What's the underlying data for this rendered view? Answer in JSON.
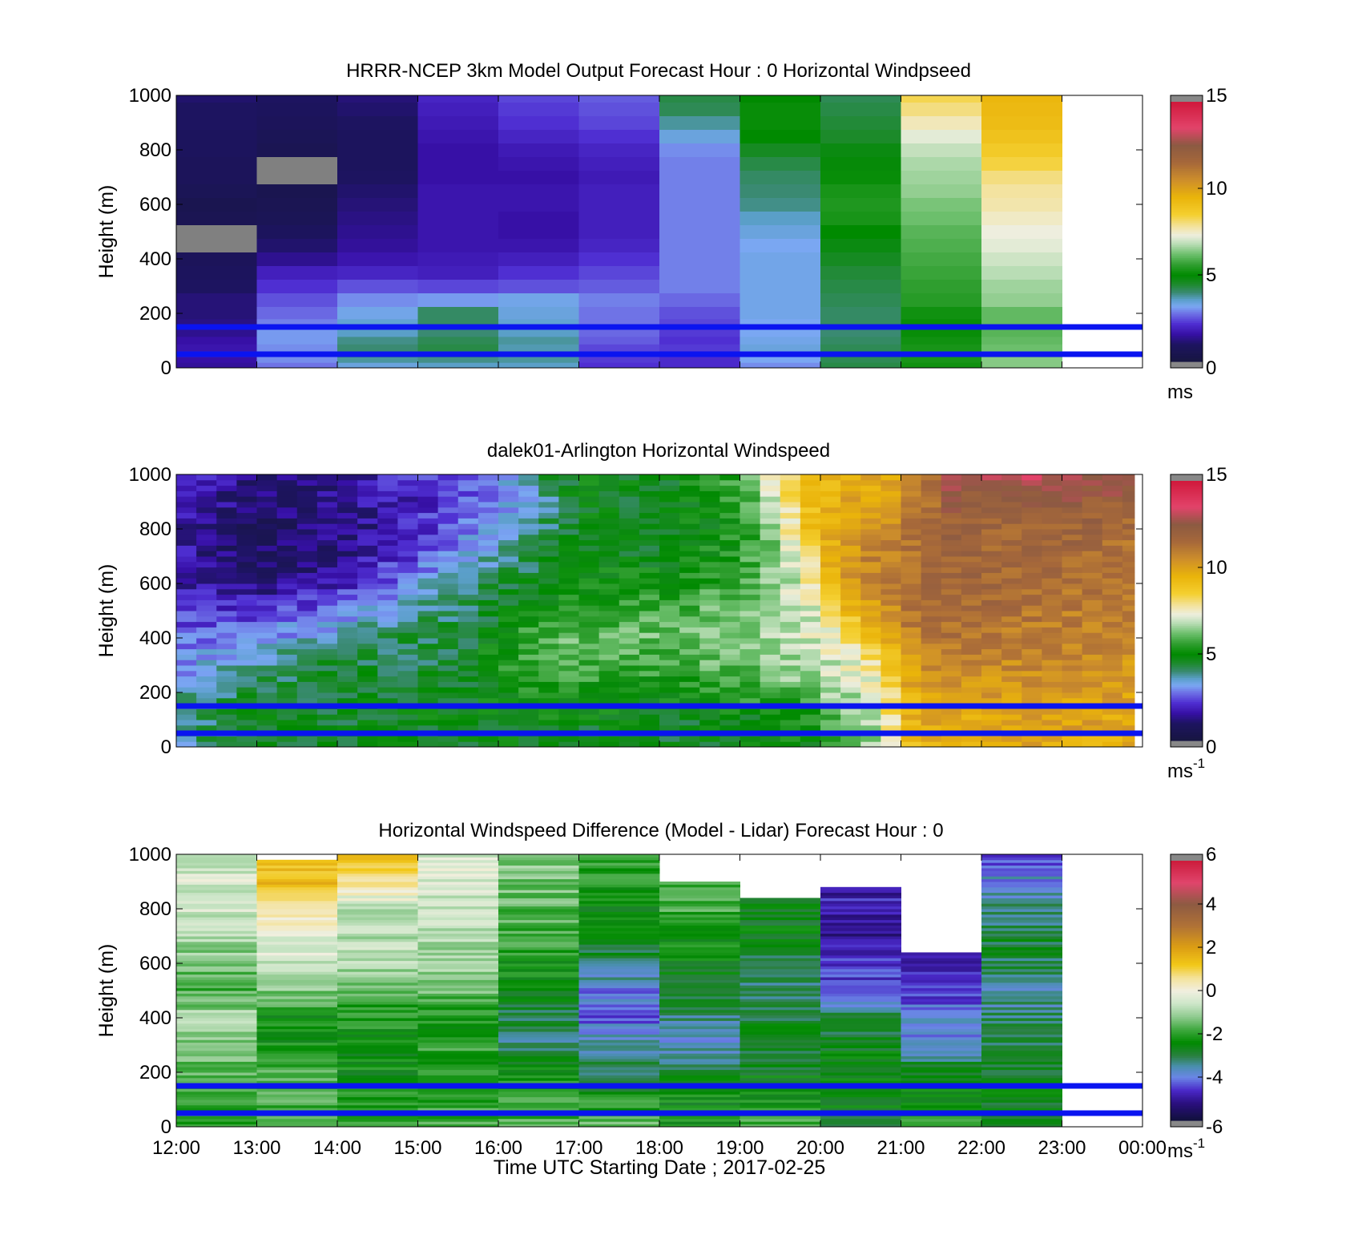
{
  "chart_data": [
    {
      "type": "heatmap",
      "title": "HRRR-NCEP 3km Model Output   Forecast Hour : 0 Horizontal Windpseed",
      "xlabel": "",
      "ylabel": "Height (m)",
      "yticks": [
        "0",
        "200",
        "400",
        "600",
        "800",
        "1000"
      ],
      "ylim": [
        0,
        1000
      ],
      "x": [
        "12:00",
        "13:00",
        "14:00",
        "15:00",
        "16:00",
        "17:00",
        "18:00",
        "19:00",
        "20:00",
        "21:00",
        "22:00",
        "23:00"
      ],
      "heights": [
        10,
        30,
        50,
        75,
        100,
        130,
        160,
        200,
        250,
        300,
        350,
        400,
        450,
        500,
        550,
        600,
        650,
        700,
        750,
        800,
        850,
        900,
        950,
        1000
      ],
      "z": [
        [
          1.5,
          2.8,
          3.4,
          3.6,
          3.6,
          2.2,
          2.1,
          3.0,
          4.3,
          5.2,
          6.4
        ],
        [
          1.6,
          3.0,
          3.8,
          3.9,
          3.8,
          2.3,
          2.1,
          3.2,
          4.2,
          5.3,
          6.4
        ],
        [
          1.8,
          3.0,
          4.0,
          4.1,
          3.8,
          2.4,
          2.2,
          3.3,
          4.3,
          5.3,
          6.3
        ],
        [
          1.7,
          3.0,
          4.0,
          4.3,
          3.7,
          2.4,
          2.3,
          3.4,
          4.2,
          5.3,
          6.2
        ],
        [
          1.6,
          3.1,
          3.9,
          4.2,
          3.8,
          2.6,
          2.2,
          3.3,
          4.1,
          5.2,
          6.1
        ],
        [
          1.4,
          3.1,
          3.6,
          4.0,
          3.6,
          2.7,
          2.3,
          3.2,
          4.0,
          5.1,
          6.0
        ],
        [
          1.3,
          2.9,
          3.5,
          4.1,
          3.5,
          2.8,
          2.4,
          3.2,
          4.1,
          5.1,
          6.1
        ],
        [
          1.2,
          2.7,
          3.3,
          4.1,
          3.4,
          2.8,
          2.5,
          3.3,
          4.1,
          5.2,
          6.1
        ],
        [
          1.2,
          2.5,
          3.0,
          3.1,
          3.3,
          2.9,
          2.7,
          3.3,
          4.2,
          5.5,
          6.5
        ],
        [
          1.0,
          2.2,
          2.5,
          2.4,
          2.5,
          2.6,
          2.9,
          3.3,
          4.3,
          5.6,
          6.6
        ],
        [
          0.9,
          1.9,
          2.0,
          1.9,
          2.2,
          2.4,
          2.9,
          3.3,
          4.4,
          5.7,
          6.8
        ],
        [
          0.8,
          1.4,
          1.7,
          1.8,
          1.9,
          2.2,
          2.9,
          3.3,
          4.6,
          5.8,
          7.0
        ],
        [
          -1,
          1.1,
          1.5,
          1.7,
          1.7,
          2.0,
          2.9,
          3.2,
          4.8,
          5.9,
          7.2
        ],
        [
          -1,
          0.9,
          1.4,
          1.7,
          1.6,
          1.9,
          2.9,
          3.4,
          5.0,
          6.0,
          7.3
        ],
        [
          0.6,
          0.7,
          1.3,
          1.7,
          1.6,
          1.9,
          2.9,
          3.6,
          5.3,
          6.2,
          7.5
        ],
        [
          0.5,
          0.6,
          1.2,
          1.7,
          1.7,
          1.9,
          2.9,
          3.9,
          5.4,
          6.3,
          7.7
        ],
        [
          0.7,
          0.5,
          1.1,
          1.7,
          1.7,
          1.9,
          2.9,
          4.0,
          5.3,
          6.5,
          7.8
        ],
        [
          0.8,
          -1,
          1.0,
          1.6,
          1.6,
          1.8,
          2.9,
          4.1,
          5.1,
          6.6,
          8.0
        ],
        [
          0.8,
          -1,
          0.9,
          1.6,
          1.7,
          1.9,
          2.9,
          4.3,
          4.9,
          6.7,
          8.4
        ],
        [
          0.9,
          0.6,
          0.9,
          1.6,
          1.8,
          2.0,
          3.0,
          4.6,
          4.8,
          6.9,
          8.7
        ],
        [
          0.9,
          0.7,
          0.9,
          1.7,
          2.0,
          2.2,
          3.4,
          5.0,
          4.5,
          7.2,
          9.0
        ],
        [
          1.0,
          0.8,
          1.0,
          1.8,
          2.2,
          2.4,
          3.8,
          5.1,
          4.4,
          7.6,
          9.2
        ],
        [
          1.0,
          0.9,
          1.1,
          1.9,
          2.3,
          2.5,
          4.2,
          5.1,
          4.3,
          8.0,
          9.3
        ],
        [
          1.1,
          1.0,
          1.2,
          2.0,
          2.4,
          2.6,
          4.3,
          5.0,
          4.2,
          8.3,
          9.4
        ]
      ],
      "lines_m": [
        150,
        50
      ],
      "clim": [
        0,
        15
      ],
      "colorbar_ticks": [
        "0",
        "5",
        "10",
        "15"
      ],
      "colorbar_unit": "ms"
    },
    {
      "type": "heatmap",
      "title": "dalek01-Arlington  Horizontal Windspeed",
      "xlabel": "",
      "ylabel": "Height (m)",
      "yticks": [
        "0",
        "200",
        "400",
        "600",
        "800",
        "1000"
      ],
      "ylim": [
        0,
        1000
      ],
      "time_start": "12:00",
      "time_end": "23:54",
      "time_step_min": 15,
      "height_step_m": 20,
      "profiles": {
        "times_h": [
          12.0,
          13.0,
          14.0,
          15.0,
          15.5,
          16.0,
          16.5,
          17.0,
          18.0,
          19.0,
          19.5,
          19.9,
          20.2,
          20.5,
          20.8,
          21.0,
          21.3,
          21.6,
          22.0,
          23.0,
          23.9
        ],
        "heights_m": [
          0,
          100,
          200,
          300,
          400,
          500,
          600,
          700,
          800,
          900,
          1000
        ],
        "values": [
          [
            3.6,
            4.0,
            3.5,
            3.0,
            2.7,
            2.2,
            1.8,
            1.7,
            1.8,
            1.9,
            2.0
          ],
          [
            4.3,
            4.6,
            4.5,
            3.8,
            3.0,
            2.2,
            1.2,
            0.8,
            0.9,
            1.1,
            1.4
          ],
          [
            4.5,
            4.6,
            4.5,
            4.4,
            3.8,
            2.8,
            1.8,
            1.4,
            1.2,
            1.3,
            1.6
          ],
          [
            4.6,
            4.8,
            4.7,
            4.4,
            4.3,
            4.0,
            3.1,
            2.4,
            2.0,
            2.0,
            2.2
          ],
          [
            4.6,
            4.8,
            4.6,
            4.4,
            4.4,
            4.2,
            3.8,
            3.2,
            2.7,
            2.4,
            2.6
          ],
          [
            4.7,
            4.8,
            5.0,
            5.2,
            5.0,
            4.6,
            4.2,
            3.6,
            3.1,
            2.9,
            3.2
          ],
          [
            4.7,
            4.9,
            5.4,
            5.8,
            5.9,
            5.2,
            4.7,
            4.3,
            3.9,
            3.6,
            4.0
          ],
          [
            4.6,
            4.8,
            5.3,
            5.8,
            6.1,
            5.6,
            5.1,
            4.9,
            4.8,
            4.9,
            4.9
          ],
          [
            4.5,
            4.7,
            5.1,
            5.7,
            6.2,
            5.8,
            5.2,
            4.8,
            4.6,
            4.6,
            4.6
          ],
          [
            4.7,
            4.8,
            5.5,
            6.2,
            6.5,
            6.2,
            5.9,
            5.5,
            5.3,
            5.5,
            5.8
          ],
          [
            4.8,
            5.0,
            5.8,
            6.6,
            6.8,
            6.6,
            6.6,
            6.6,
            6.8,
            7.2,
            7.6
          ],
          [
            5.0,
            5.3,
            6.2,
            6.8,
            7.0,
            7.2,
            7.5,
            8.5,
            9.2,
            9.4,
            9.6
          ],
          [
            5.6,
            5.8,
            6.6,
            7.1,
            7.4,
            8.5,
            9.6,
            10.0,
            9.8,
            9.6,
            9.4
          ],
          [
            6.2,
            6.3,
            6.8,
            7.4,
            8.6,
            9.6,
            10.3,
            10.6,
            10.5,
            10.0,
            9.8
          ],
          [
            7.2,
            7.2,
            7.6,
            8.4,
            9.5,
            10.3,
            10.8,
            10.8,
            10.4,
            9.8,
            9.6
          ],
          [
            9.0,
            9.2,
            9.5,
            9.8,
            10.4,
            10.8,
            11.2,
            11.0,
            10.8,
            10.7,
            10.6
          ],
          [
            9.6,
            9.8,
            10.0,
            10.4,
            11.0,
            11.6,
            11.8,
            11.6,
            11.4,
            11.2,
            11.4
          ],
          [
            9.6,
            9.8,
            10.2,
            10.6,
            11.2,
            11.6,
            11.8,
            11.8,
            11.8,
            12.2,
            12.6
          ],
          [
            9.6,
            9.8,
            10.2,
            10.6,
            11.0,
            11.4,
            11.6,
            11.6,
            11.6,
            12.2,
            13.2
          ],
          [
            9.8,
            10.0,
            10.2,
            10.6,
            10.8,
            11.0,
            11.4,
            11.6,
            11.8,
            12.2,
            13.0
          ],
          [
            9.6,
            9.8,
            10.0,
            10.2,
            10.6,
            10.8,
            11.0,
            11.2,
            11.5,
            12.0,
            13.0
          ]
        ]
      },
      "x_end_data_h": 23.9,
      "lines_m": [
        150,
        50
      ],
      "clim": [
        0,
        15
      ],
      "colorbar_ticks": [
        "0",
        "5",
        "10",
        "15"
      ],
      "colorbar_unit": "ms",
      "colorbar_unit_sup": "-1"
    },
    {
      "type": "heatmap",
      "title": "Horizontal Windspeed Difference (Model - Lidar) Forecast Hour : 0",
      "xlabel": "Time UTC  Starting Date ; 2017-02-25",
      "ylabel": "Height (m)",
      "yticks": [
        "0",
        "200",
        "400",
        "600",
        "800",
        "1000"
      ],
      "ylim": [
        0,
        1000
      ],
      "xticks": [
        "12:00",
        "13:00",
        "14:00",
        "15:00",
        "16:00",
        "17:00",
        "18:00",
        "19:00",
        "20:00",
        "21:00",
        "22:00",
        "23:00",
        "00:00"
      ],
      "x": [
        "12:00",
        "13:00",
        "14:00",
        "15:00",
        "16:00",
        "17:00",
        "18:00",
        "19:00",
        "20:00",
        "21:00",
        "22:00",
        "23:00"
      ],
      "column_tops_m": [
        1000,
        980,
        1000,
        1000,
        1000,
        1000,
        900,
        840,
        880,
        640,
        1000
      ],
      "profiles": {
        "heights_m": [
          0,
          100,
          200,
          300,
          400,
          500,
          600,
          700,
          800,
          900,
          1000
        ],
        "values": [
          [
            -2.2,
            -2.0,
            -1.6,
            -1.2,
            -0.9,
            -1.8,
            -1.4,
            -0.9,
            -0.5,
            -0.4,
            -0.5
          ],
          [
            -2.0,
            -1.8,
            -1.8,
            -2.2,
            -2.4,
            -1.2,
            -0.6,
            -0.3,
            0.4,
            1.4,
            1.5
          ],
          [
            -2.0,
            -2.2,
            -2.4,
            -2.2,
            -2.2,
            -1.6,
            -0.8,
            -0.8,
            -0.8,
            0.6,
            1.3
          ],
          [
            -1.8,
            -2.0,
            -2.0,
            -2.0,
            -2.2,
            -1.4,
            -1.1,
            -0.9,
            -0.6,
            -0.4,
            -0.4
          ],
          [
            -1.6,
            -2.0,
            -2.4,
            -3.2,
            -3.0,
            -2.6,
            -2.2,
            -1.8,
            -1.6,
            -1.4,
            -1.2
          ],
          [
            -1.6,
            -2.2,
            -3.0,
            -3.6,
            -4.2,
            -4.0,
            -3.0,
            -2.6,
            -2.6,
            -2.0,
            -1.8
          ],
          [
            -2.2,
            -2.4,
            -2.6,
            -3.8,
            -3.2,
            -2.8,
            -2.4,
            -2.2,
            -1.8,
            -1.8,
            -1.8
          ],
          [
            -1.6,
            -2.4,
            -2.6,
            -2.8,
            -2.8,
            -3.2,
            -3.2,
            -2.6,
            -2.5,
            -2.5,
            -2.5
          ],
          [
            -2.6,
            -2.6,
            -2.6,
            -2.6,
            -3.0,
            -4.2,
            -4.6,
            -5.0,
            -4.8,
            -4.8,
            -4.8
          ],
          [
            -1.8,
            -2.4,
            -2.6,
            -3.8,
            -4.0,
            -4.6,
            -4.8,
            -4.8,
            -4.8,
            -4.8,
            -4.8
          ],
          [
            -2.5,
            -2.6,
            -2.6,
            -3.0,
            -3.2,
            -3.6,
            -3.0,
            -2.8,
            -3.4,
            -3.8,
            -4.4
          ]
        ]
      },
      "lines_m": [
        150,
        50
      ],
      "clim": [
        -6,
        6
      ],
      "colorbar_ticks": [
        "-6",
        "-4",
        "-2",
        "0",
        "2",
        "4",
        "6"
      ],
      "colorbar_unit": "ms",
      "colorbar_unit_sup": "-1"
    }
  ]
}
